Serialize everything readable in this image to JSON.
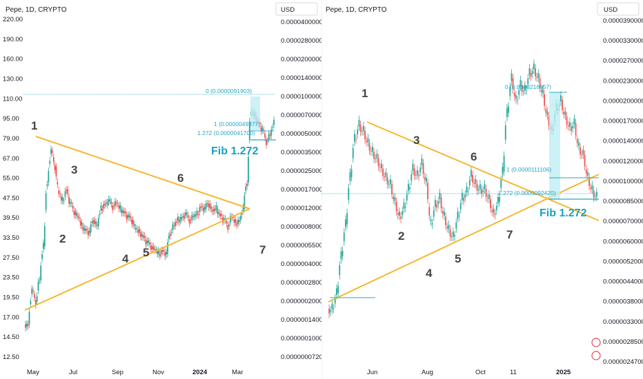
{
  "chart_data": [
    {
      "type": "candlestick",
      "title": "Pepe, 1D, CRYPTO",
      "currency_label": "USD",
      "x_ticks": [
        "May",
        "Jul",
        "Sep",
        "Nov",
        "2024",
        "Mar"
      ],
      "left_axis_ticks": [
        "220.00",
        "190.00",
        "160.00",
        "130.00",
        "110.00",
        "95.00",
        "79.00",
        "67.00",
        "55.00",
        "47.50",
        "39.50",
        "33.50",
        "27.50",
        "23.50",
        "19.50",
        "17.00",
        "14.50",
        "12.50"
      ],
      "right_axis_ticks": [
        "0.0000400000",
        "0.0000280000",
        "0.0000200000",
        "0.0000140000",
        "0.0000100000",
        "0.0000070000",
        "0.0000050000",
        "0.0000035000",
        "0.0000025000",
        "0.0000017000",
        "0.0000012000",
        "0.0000008000",
        "0.0000005500",
        "0.0000004000",
        "0.0000002800",
        "0.0000002000",
        "0.0000001400",
        "0.0000001000",
        "0.0000000720"
      ],
      "wave_labels": [
        "1",
        "2",
        "3",
        "4",
        "5",
        "6",
        "7"
      ],
      "fib_levels": [
        {
          "label": "0 (0.0000091903)",
          "value": 9.1903e-06
        },
        {
          "label": "1 (0.0000049377)",
          "value": 4.9377e-06
        },
        {
          "label": "1.272 (0.0000041700)",
          "value": 4.17e-06
        }
      ],
      "fib_annotation": "Fib 1.272",
      "price_path": [
        16.5,
        22,
        20,
        24,
        32,
        55,
        72,
        63,
        50,
        47,
        52,
        46,
        43,
        41,
        38,
        37,
        36,
        40,
        38,
        44,
        46,
        47,
        45,
        46,
        44,
        43,
        41,
        40,
        37,
        36,
        35,
        33,
        32,
        31,
        30,
        31,
        30,
        36,
        38,
        40,
        41,
        42,
        40,
        41,
        42,
        45,
        44,
        46,
        43,
        44,
        42,
        40,
        38,
        41,
        39,
        40,
        44,
        55,
        100,
        97,
        92,
        86,
        78,
        82,
        91
      ]
    },
    {
      "type": "candlestick",
      "title": "Pepe, 1D, CRYPTO",
      "currency_label": "USD",
      "x_ticks": [
        "Jun",
        "Aug",
        "Oct",
        "11",
        "2025"
      ],
      "right_axis_ticks": [
        "0.0000390000",
        "0.0000330000",
        "0.0000270000",
        "0.0000230000",
        "0.0000200000",
        "0.0000170000",
        "0.0000140000",
        "0.0000120000",
        "0.0000100000",
        "0.0000085000",
        "0.0000070000",
        "0.0000060000",
        "0.0000052000",
        "0.0000044000",
        "0.0000038000",
        "0.0000033000",
        "0.0000028500",
        "0.0000024700"
      ],
      "wave_labels": [
        "1",
        "2",
        "3",
        "4",
        "5",
        "6",
        "7"
      ],
      "fib_levels": [
        {
          "label": "0 (0.0000216657)",
          "value": 2.16657e-05
        },
        {
          "label": "1 (0.0000111106)",
          "value": 1.11106e-05
        },
        {
          "label": "1.272 (0.0000092420)",
          "value": 9.242e-06
        }
      ],
      "fib_annotation": "Fib 1.272",
      "price_path": [
        3.8e-06,
        4.3e-06,
        5.8e-06,
        7.5e-06,
        1.1e-05,
        1.5e-05,
        1.68e-05,
        1.6e-05,
        1.45e-05,
        1.35e-05,
        1.28e-05,
        1.18e-05,
        1.1e-05,
        1.04e-05,
        9e-06,
        8e-06,
        8.6e-06,
        1e-05,
        1.18e-05,
        1.12e-05,
        1.23e-05,
        1.05e-05,
        7.5e-06,
        8.8e-06,
        9.3e-06,
        8e-06,
        7.2e-06,
        6.8e-06,
        8e-06,
        9.3e-06,
        9.8e-06,
        1.12e-05,
        1.04e-05,
        1e-05,
        1e-05,
        9.2e-06,
        8.2e-06,
        9e-06,
        1.15e-05,
        1.85e-05,
        2.45e-05,
        2.05e-05,
        2.32e-05,
        2.22e-05,
        2.55e-05,
        2.65e-05,
        2.45e-05,
        2.15e-05,
        1.8e-05,
        1.6e-05,
        1.92e-05,
        2.05e-05,
        1.8e-05,
        1.65e-05,
        1.7e-05,
        1.4e-05,
        1.32e-05,
        1.1e-05,
        9.9e-06,
        9.4e-06
      ]
    }
  ]
}
